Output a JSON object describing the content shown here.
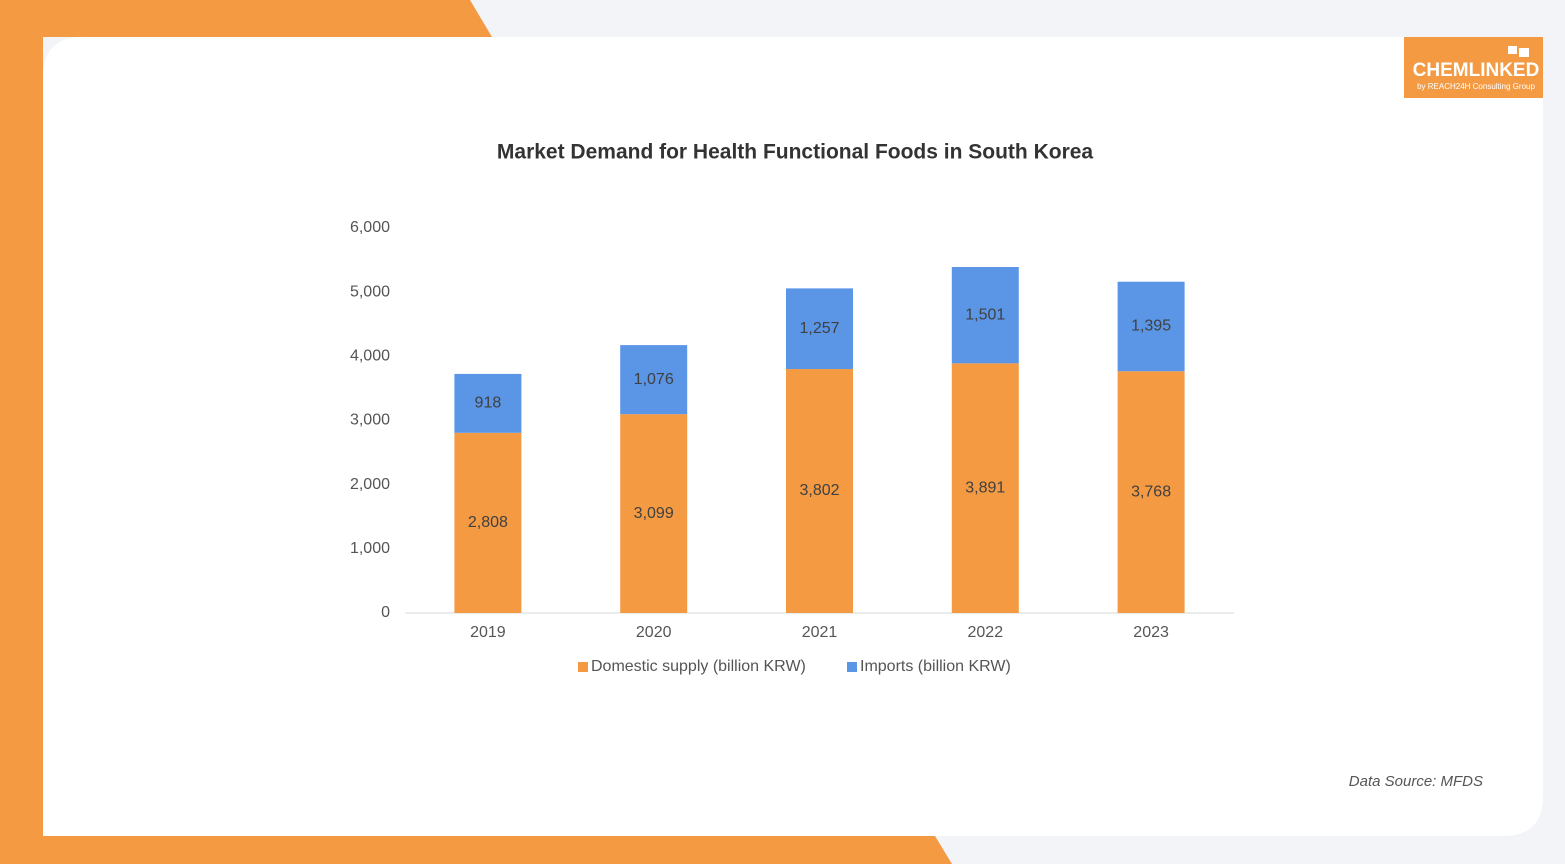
{
  "logo": {
    "name": "CHEMLINKED",
    "tagline": "by REACH24H Consulting Group"
  },
  "source": "Data Source: MFDS",
  "chart_data": {
    "type": "stacked_bar",
    "title": "Market Demand for Health Functional Foods in South Korea",
    "categories": [
      "2019",
      "2020",
      "2021",
      "2022",
      "2023"
    ],
    "series": [
      {
        "name": "Domestic supply (billion KRW)",
        "color": "#f39a43",
        "values": [
          2808,
          3099,
          3802,
          3891,
          3768
        ],
        "value_labels": [
          "2,808",
          "3,099",
          "3,802",
          "3,891",
          "3,768"
        ]
      },
      {
        "name": "Imports (billion KRW)",
        "color": "#5b95e5",
        "values": [
          918,
          1076,
          1257,
          1501,
          1395
        ],
        "value_labels": [
          "918",
          "1,076",
          "1,257",
          "1,501",
          "1,395"
        ]
      }
    ],
    "ylim": [
      0,
      6000
    ],
    "yticks": [
      0,
      {
        "value": 1000,
        "label": "1,000"
      },
      {
        "value": 2000,
        "label": "2,000"
      },
      {
        "value": 3000,
        "label": "3,000"
      },
      {
        "value": 4000,
        "label": "4,000"
      },
      {
        "value": 5000,
        "label": "5,000"
      },
      {
        "value": 6000,
        "label": "6,000"
      }
    ],
    "legend": "bottom"
  }
}
